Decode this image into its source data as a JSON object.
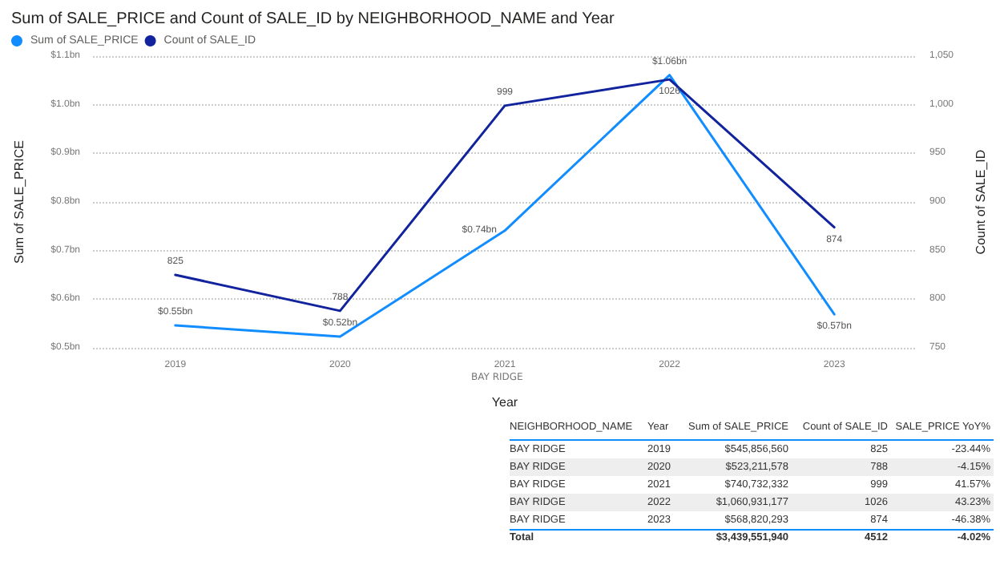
{
  "chart_data": {
    "type": "line",
    "title": "Sum of SALE_PRICE and Count of SALE_ID by NEIGHBORHOOD_NAME and Year",
    "xlabel": "Year",
    "ylabel": "Sum of SALE_PRICE",
    "y2label": "Count of SALE_ID",
    "categories": [
      "2019",
      "2020",
      "2021",
      "2022",
      "2023"
    ],
    "series": [
      {
        "name": "Sum of SALE_PRICE",
        "color": "#118dff",
        "values": [
          0.546,
          0.523,
          0.741,
          1.061,
          0.569
        ],
        "value_labels": [
          "$0.55bn",
          "$0.52bn",
          "$0.74bn",
          "$1.06bn",
          "$0.57bn"
        ]
      },
      {
        "name": "Count of SALE_ID",
        "color": "#12239e",
        "axis": "y2",
        "values": [
          825,
          788,
          999,
          1026,
          874
        ],
        "value_labels": [
          "825",
          "788",
          "999",
          "1026",
          "874"
        ]
      }
    ],
    "ylim": [
      0.5,
      1.1
    ],
    "yticks": [
      {
        "value": 0.5,
        "label": "$0.5bn"
      },
      {
        "value": 0.6,
        "label": "$0.6bn"
      },
      {
        "value": 0.7,
        "label": "$0.7bn"
      },
      {
        "value": 0.8,
        "label": "$0.8bn"
      },
      {
        "value": 0.9,
        "label": "$0.9bn"
      },
      {
        "value": 1.0,
        "label": "$1.0bn"
      },
      {
        "value": 1.1,
        "label": "$1.1bn"
      }
    ],
    "y2lim": [
      750,
      1050
    ],
    "y2ticks": [
      {
        "value": 750,
        "label": "750"
      },
      {
        "value": 800,
        "label": "800"
      },
      {
        "value": 850,
        "label": "850"
      },
      {
        "value": 900,
        "label": "900"
      },
      {
        "value": 950,
        "label": "950"
      },
      {
        "value": 1000,
        "label": "1,000"
      },
      {
        "value": 1050,
        "label": "1,050"
      }
    ],
    "grid": "y",
    "legend": "top left",
    "marker": "none",
    "line_style": "solid",
    "annotations": [
      "BAY RIDGE",
      "NEIGHBORHOOD_NAME",
      "Year",
      "Sum of SALE_PRICE",
      "Count of SALE_ID",
      "SALE_PRICE YoY%",
      "BAY RIDGE",
      "2019",
      "$545,856,560",
      "825",
      "-23.44%",
      "BAY RIDGE",
      "2020",
      "$523,211,578",
      "788",
      "-4.15%",
      "BAY RIDGE",
      "2021",
      "$740,732,332",
      "999",
      "41.57%",
      "BAY RIDGE",
      "2022",
      "$1,060,931,177",
      "1026",
      "43.23%",
      "BAY RIDGE",
      "2023",
      "$568,820,293",
      "874",
      "-46.38%",
      "Total",
      "$3,439,551,940",
      "4512",
      "-4.02%"
    ]
  }
}
